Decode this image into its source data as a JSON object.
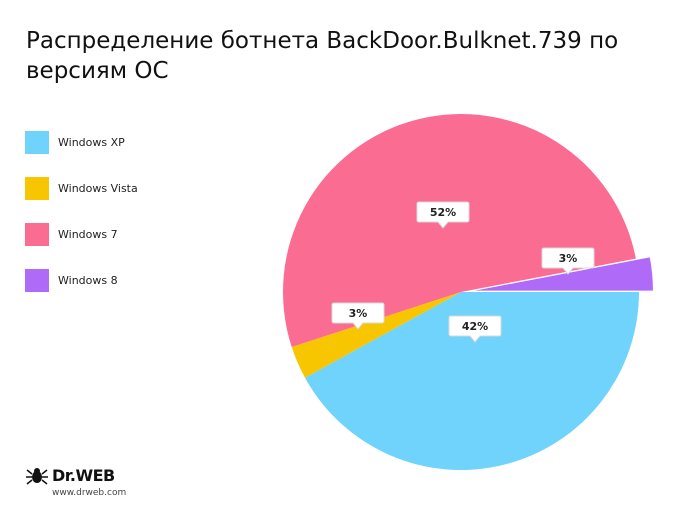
{
  "chart_data": {
    "type": "pie",
    "title": "Распределение ботнета BackDoor.Bulknet.739 по версиям ОС",
    "categories": [
      "Windows XP",
      "Windows Vista",
      "Windows 7",
      "Windows 8"
    ],
    "values": [
      42,
      3,
      52,
      3
    ],
    "labels": [
      "42%",
      "3%",
      "52%",
      "3%"
    ],
    "colors": [
      "#6fd3fb",
      "#f7c600",
      "#fb6c93",
      "#b06af8"
    ],
    "legend_position": "left"
  },
  "logo": {
    "brand": "Dr.WEB",
    "url": "www.drweb.com"
  }
}
